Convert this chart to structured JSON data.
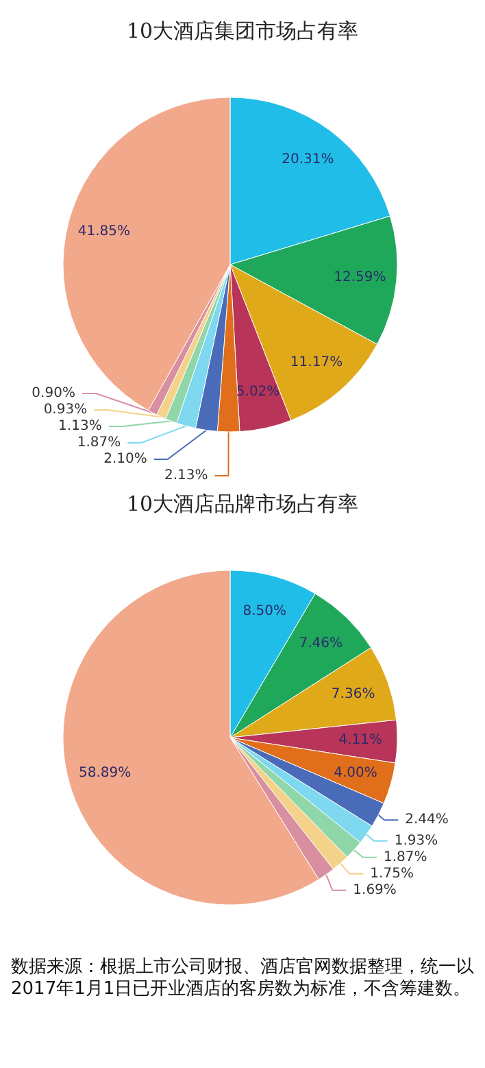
{
  "chart_data": [
    {
      "type": "pie",
      "title": "10大酒店集团市场占有率",
      "categories": [
        null,
        null,
        null,
        null,
        null,
        null,
        null,
        null,
        null,
        null,
        null
      ],
      "values": [
        20.31,
        12.59,
        11.17,
        5.02,
        2.13,
        2.1,
        1.87,
        1.13,
        0.93,
        0.9,
        41.85
      ],
      "value_labels": [
        "20.31%",
        "12.59%",
        "11.17%",
        "5.02%",
        "2.13%",
        "2.10%",
        "1.87%",
        "1.13%",
        "0.93%",
        "0.90%",
        "41.85%"
      ],
      "colors": [
        "#20bde8",
        "#1fa75a",
        "#e0a91a",
        "#b83458",
        "#e06e1a",
        "#4a6bb8",
        "#7dd8f0",
        "#8fd6a8",
        "#f5d28a",
        "#d88fa0",
        "#f2a88a"
      ]
    },
    {
      "type": "pie",
      "title": "10大酒店品牌市场占有率",
      "categories": [
        null,
        null,
        null,
        null,
        null,
        null,
        null,
        null,
        null,
        null,
        null
      ],
      "values": [
        8.5,
        7.46,
        7.36,
        4.11,
        4.0,
        2.44,
        1.93,
        1.87,
        1.75,
        1.69,
        58.89
      ],
      "value_labels": [
        "8.50%",
        "7.46%",
        "7.36%",
        "4.11%",
        "4.00%",
        "2.44%",
        "1.93%",
        "1.87%",
        "1.75%",
        "1.69%",
        "58.89%"
      ],
      "colors": [
        "#20bde8",
        "#1fa75a",
        "#e0a91a",
        "#b83458",
        "#e06e1a",
        "#4a6bb8",
        "#7dd8f0",
        "#8fd6a8",
        "#f5d28a",
        "#d88fa0",
        "#f2a88a"
      ],
      "annotations": [
        "数据来源：根据上市公司财报、酒店官网数据整理，统一以2017年1月1日已开业酒店的客房数为标准，不含筹建数。"
      ]
    }
  ]
}
